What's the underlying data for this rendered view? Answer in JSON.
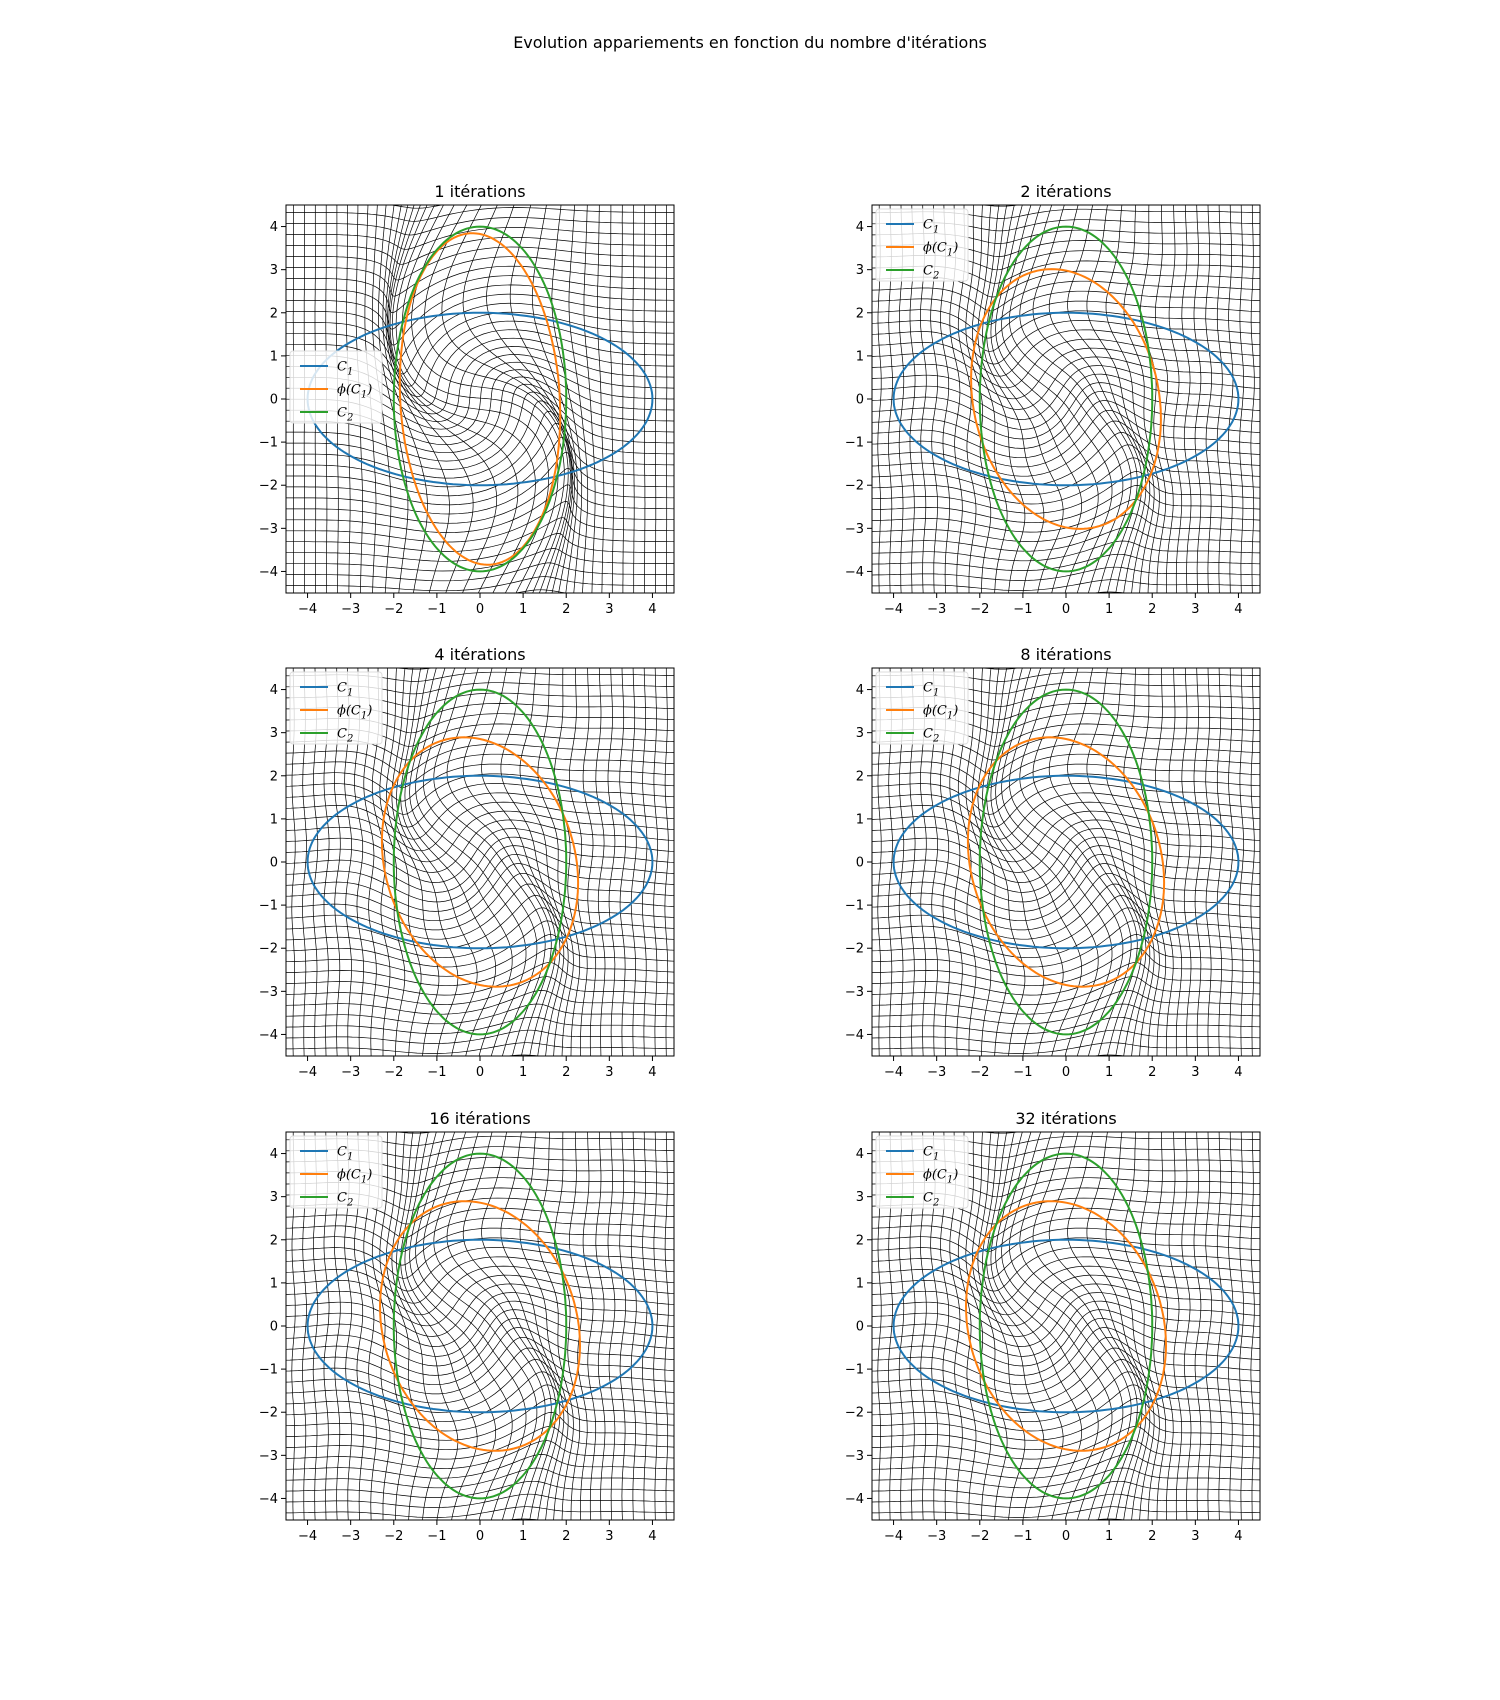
{
  "figure": {
    "suptitle": "Evolution appariements en fonction du nombre d'itérations"
  },
  "chart_data": [
    {
      "type": "line",
      "title": "1 itérations",
      "iterations": 1,
      "xlim": [
        -4.5,
        4.5
      ],
      "ylim": [
        -4.5,
        4.5
      ],
      "xticks": [
        -4,
        -3,
        -2,
        -1,
        0,
        1,
        2,
        3,
        4
      ],
      "yticks": [
        -4,
        -3,
        -2,
        -1,
        0,
        1,
        2,
        3,
        4
      ],
      "legend_loc": "center-left",
      "series": [
        {
          "name": "C_1",
          "legend": "C1",
          "color": "#1f77b4",
          "shape": "ellipse",
          "center": [
            0,
            0
          ],
          "semi_axes": [
            4,
            2
          ]
        },
        {
          "name": "phi(C_1)",
          "legend": "ϕ(C1)",
          "color": "#ff7f0e",
          "shape": "ellipse",
          "center": [
            0,
            0
          ],
          "semi_axes": [
            1.85,
            3.85
          ],
          "tilt": 0.06
        },
        {
          "name": "C_2",
          "legend": "C2",
          "color": "#2ca02c",
          "shape": "ellipse",
          "center": [
            0,
            0
          ],
          "semi_axes": [
            2,
            4
          ]
        }
      ]
    },
    {
      "type": "line",
      "title": "2 itérations",
      "iterations": 2,
      "xlim": [
        -4.5,
        4.5
      ],
      "ylim": [
        -4.5,
        4.5
      ],
      "xticks": [
        -4,
        -3,
        -2,
        -1,
        0,
        1,
        2,
        3,
        4
      ],
      "yticks": [
        -4,
        -3,
        -2,
        -1,
        0,
        1,
        2,
        3,
        4
      ],
      "legend_loc": "top-left",
      "series": [
        {
          "name": "C_1",
          "legend": "C1",
          "color": "#1f77b4",
          "shape": "ellipse",
          "center": [
            0,
            0
          ],
          "semi_axes": [
            4,
            2
          ]
        },
        {
          "name": "phi(C_1)",
          "legend": "ϕ(C1)",
          "color": "#ff7f0e",
          "shape": "ellipse",
          "center": [
            0,
            0
          ],
          "semi_axes": [
            2.15,
            3.05
          ],
          "tilt": 0.22
        },
        {
          "name": "C_2",
          "legend": "C2",
          "color": "#2ca02c",
          "shape": "ellipse",
          "center": [
            0,
            0
          ],
          "semi_axes": [
            2,
            4
          ]
        }
      ]
    },
    {
      "type": "line",
      "title": "4 itérations",
      "iterations": 4,
      "xlim": [
        -4.5,
        4.5
      ],
      "ylim": [
        -4.5,
        4.5
      ],
      "xticks": [
        -4,
        -3,
        -2,
        -1,
        0,
        1,
        2,
        3,
        4
      ],
      "yticks": [
        -4,
        -3,
        -2,
        -1,
        0,
        1,
        2,
        3,
        4
      ],
      "legend_loc": "top-left",
      "series": [
        {
          "name": "C_1",
          "legend": "C1",
          "color": "#1f77b4",
          "shape": "ellipse",
          "center": [
            0,
            0
          ],
          "semi_axes": [
            4,
            2
          ]
        },
        {
          "name": "phi(C_1)",
          "legend": "ϕ(C1)",
          "color": "#ff7f0e",
          "shape": "ellipse",
          "center": [
            0,
            0
          ],
          "semi_axes": [
            2.2,
            2.95
          ],
          "tilt": 0.3
        },
        {
          "name": "C_2",
          "legend": "C2",
          "color": "#2ca02c",
          "shape": "ellipse",
          "center": [
            0,
            0
          ],
          "semi_axes": [
            2,
            4
          ]
        }
      ]
    },
    {
      "type": "line",
      "title": "8 itérations",
      "iterations": 8,
      "xlim": [
        -4.5,
        4.5
      ],
      "ylim": [
        -4.5,
        4.5
      ],
      "xticks": [
        -4,
        -3,
        -2,
        -1,
        0,
        1,
        2,
        3,
        4
      ],
      "yticks": [
        -4,
        -3,
        -2,
        -1,
        0,
        1,
        2,
        3,
        4
      ],
      "legend_loc": "top-left",
      "series": [
        {
          "name": "C_1",
          "legend": "C1",
          "color": "#1f77b4",
          "shape": "ellipse",
          "center": [
            0,
            0
          ],
          "semi_axes": [
            4,
            2
          ]
        },
        {
          "name": "phi(C_1)",
          "legend": "ϕ(C1)",
          "color": "#ff7f0e",
          "shape": "ellipse",
          "center": [
            0,
            0
          ],
          "semi_axes": [
            2.2,
            2.95
          ],
          "tilt": 0.3
        },
        {
          "name": "C_2",
          "legend": "C2",
          "color": "#2ca02c",
          "shape": "ellipse",
          "center": [
            0,
            0
          ],
          "semi_axes": [
            2,
            4
          ]
        }
      ]
    },
    {
      "type": "line",
      "title": "16 itérations",
      "iterations": 16,
      "xlim": [
        -4.5,
        4.5
      ],
      "ylim": [
        -4.5,
        4.5
      ],
      "xticks": [
        -4,
        -3,
        -2,
        -1,
        0,
        1,
        2,
        3,
        4
      ],
      "yticks": [
        -4,
        -3,
        -2,
        -1,
        0,
        1,
        2,
        3,
        4
      ],
      "legend_loc": "top-left",
      "series": [
        {
          "name": "C_1",
          "legend": "C1",
          "color": "#1f77b4",
          "shape": "ellipse",
          "center": [
            0,
            0
          ],
          "semi_axes": [
            4,
            2
          ]
        },
        {
          "name": "phi(C_1)",
          "legend": "ϕ(C1)",
          "color": "#ff7f0e",
          "shape": "ellipse",
          "center": [
            0,
            0
          ],
          "semi_axes": [
            2.25,
            2.95
          ],
          "tilt": 0.3
        },
        {
          "name": "C_2",
          "legend": "C2",
          "color": "#2ca02c",
          "shape": "ellipse",
          "center": [
            0,
            0
          ],
          "semi_axes": [
            2,
            4
          ]
        }
      ]
    },
    {
      "type": "line",
      "title": "32 itérations",
      "iterations": 32,
      "xlim": [
        -4.5,
        4.5
      ],
      "ylim": [
        -4.5,
        4.5
      ],
      "xticks": [
        -4,
        -3,
        -2,
        -1,
        0,
        1,
        2,
        3,
        4
      ],
      "yticks": [
        -4,
        -3,
        -2,
        -1,
        0,
        1,
        2,
        3,
        4
      ],
      "legend_loc": "top-left",
      "series": [
        {
          "name": "C_1",
          "legend": "C1",
          "color": "#1f77b4",
          "shape": "ellipse",
          "center": [
            0,
            0
          ],
          "semi_axes": [
            4,
            2
          ]
        },
        {
          "name": "phi(C_1)",
          "legend": "ϕ(C1)",
          "color": "#ff7f0e",
          "shape": "ellipse",
          "center": [
            0,
            0
          ],
          "semi_axes": [
            2.25,
            2.95
          ],
          "tilt": 0.3
        },
        {
          "name": "C_2",
          "legend": "C2",
          "color": "#2ca02c",
          "shape": "ellipse",
          "center": [
            0,
            0
          ],
          "semi_axes": [
            2,
            4
          ]
        }
      ]
    }
  ]
}
